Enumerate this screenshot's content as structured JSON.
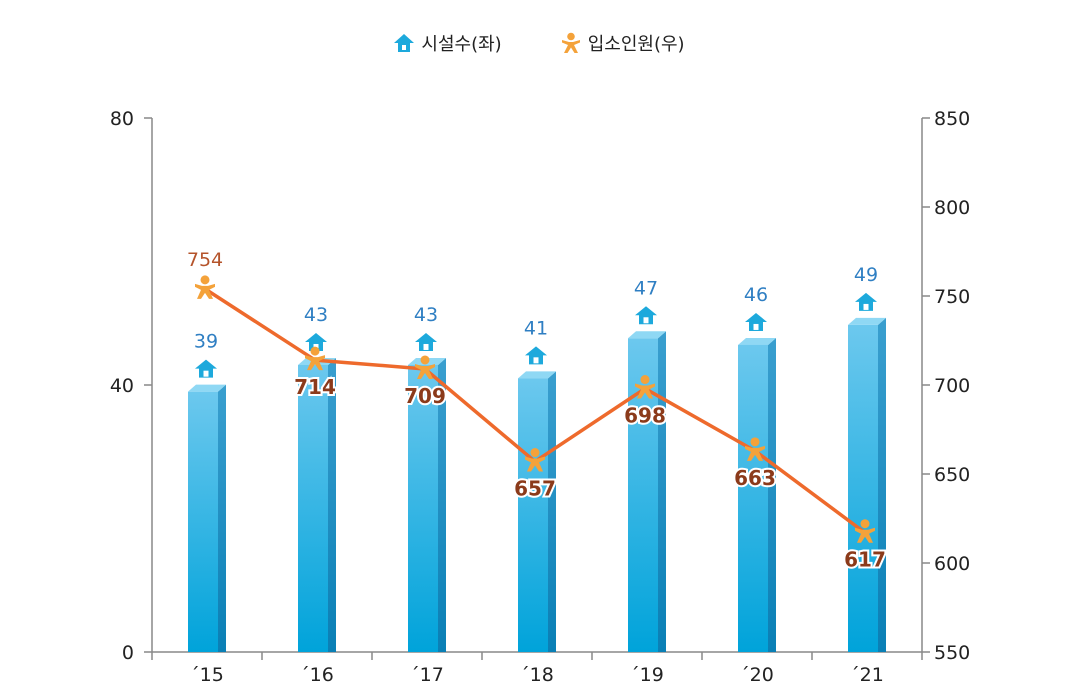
{
  "chart_data": {
    "type": "bar",
    "categories": [
      "´15",
      "´16",
      "´17",
      "´18",
      "´19",
      "´20",
      "´21"
    ],
    "series": [
      {
        "name": "시설수(좌)",
        "type": "bar",
        "axis": "left",
        "values": [
          39,
          43,
          43,
          41,
          47,
          46,
          49
        ],
        "color": "#1da9dc"
      },
      {
        "name": "입소인원(우)",
        "type": "line",
        "axis": "right",
        "values": [
          754,
          714,
          709,
          657,
          698,
          663,
          617
        ],
        "color": "#ee6a2c"
      }
    ],
    "y_left": {
      "ticks": [
        "80",
        "40",
        "0"
      ],
      "lim": [
        0,
        80
      ]
    },
    "y_right": {
      "ticks": [
        "850",
        "800",
        "750",
        "700",
        "650",
        "600",
        "550"
      ],
      "lim": [
        550,
        850
      ]
    },
    "legend": "top-center",
    "grid": false,
    "colors": {
      "bar_label": "#2f7fc3",
      "line_label_first": "#b5542b",
      "line_label": "#8b3a1a",
      "icon_person": "#f4a23a",
      "axis": "#888888"
    }
  }
}
